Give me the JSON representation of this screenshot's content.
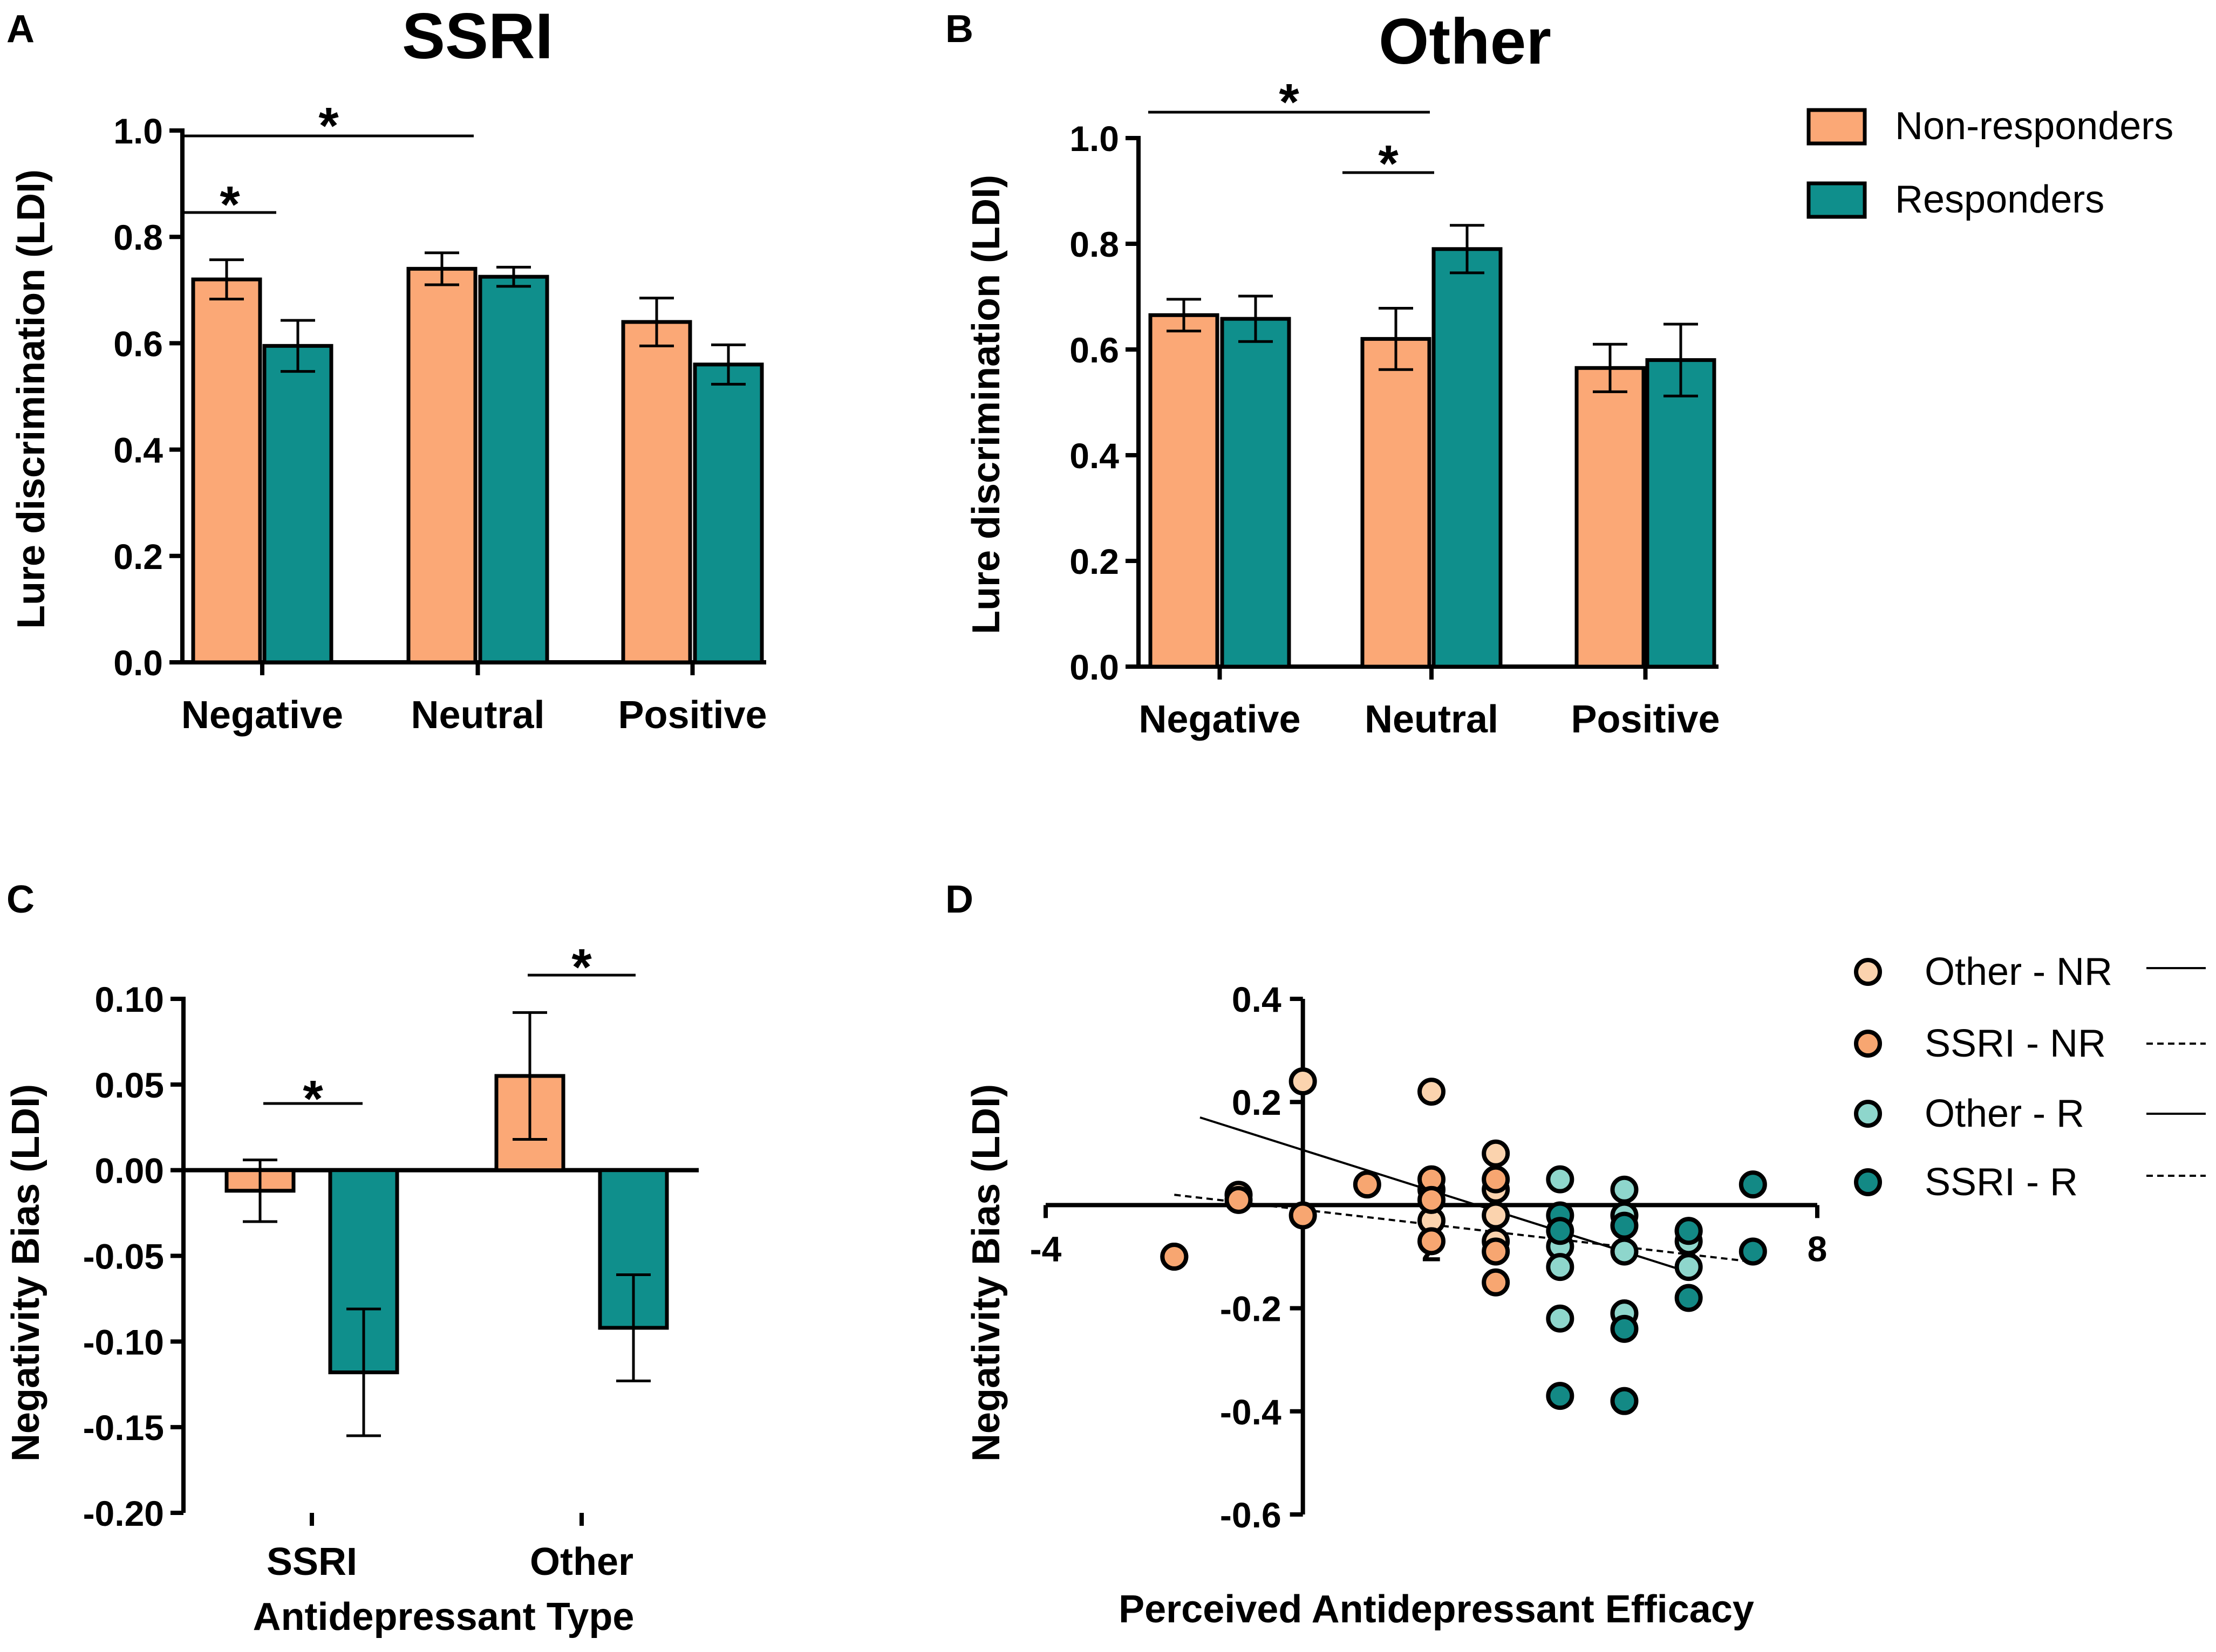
{
  "colors": {
    "non_responders": "#FBA876",
    "responders": "#0F8F8C",
    "other_nr": "#FBD3AE",
    "ssri_nr": "#F7A671",
    "other_r": "#8ED6CC",
    "ssri_r": "#138985"
  },
  "legend_top": {
    "non_responders": "Non-responders",
    "responders": "Responders"
  },
  "legend_d": {
    "other_nr": "Other - NR",
    "ssri_nr": "SSRI - NR",
    "other_r": "Other - R",
    "ssri_r": "SSRI - R"
  },
  "chart_data": [
    {
      "panel": "A",
      "type": "bar",
      "title": "SSRI",
      "ylabel": "Lure discrimination (LDI)",
      "xlabel": "",
      "ylim": [
        0,
        1.0
      ],
      "yticks": [
        "0.0",
        "0.2",
        "0.4",
        "0.6",
        "0.8",
        "1.0"
      ],
      "categories": [
        "Negative",
        "Neutral",
        "Positive"
      ],
      "series": [
        {
          "name": "Non-responders",
          "values": [
            0.72,
            0.74,
            0.64
          ],
          "errors": [
            0.037,
            0.03,
            0.045
          ]
        },
        {
          "name": "Responders",
          "values": [
            0.595,
            0.725,
            0.56
          ],
          "errors": [
            0.048,
            0.018,
            0.037
          ]
        }
      ],
      "significance": [
        {
          "label": "*",
          "from": "Negative Non-responders",
          "to": "Negative Responders"
        },
        {
          "label": "*",
          "from": "Negative",
          "to": "Neutral"
        }
      ]
    },
    {
      "panel": "B",
      "type": "bar",
      "title": "Other",
      "ylabel": "Lure discrimination (LDI)",
      "xlabel": "",
      "ylim": [
        0,
        1.0
      ],
      "yticks": [
        "0.0",
        "0.2",
        "0.4",
        "0.6",
        "0.8",
        "1.0"
      ],
      "categories": [
        "Negative",
        "Neutral",
        "Positive"
      ],
      "series": [
        {
          "name": "Non-responders",
          "values": [
            0.665,
            0.62,
            0.565
          ],
          "errors": [
            0.03,
            0.058,
            0.045
          ]
        },
        {
          "name": "Responders",
          "values": [
            0.658,
            0.79,
            0.58
          ],
          "errors": [
            0.043,
            0.045,
            0.068
          ]
        }
      ],
      "significance": [
        {
          "label": "*",
          "from": "Negative",
          "to": "Neutral"
        },
        {
          "label": "*",
          "from": "Neutral Non-responders",
          "to": "Neutral Responders"
        }
      ]
    },
    {
      "panel": "C",
      "type": "bar",
      "title": "",
      "ylabel": "Negativity Bias (LDI)",
      "xlabel": "Antidepressant Type",
      "ylim": [
        -0.2,
        0.1
      ],
      "yticks": [
        "0.10",
        "0.05",
        "0.00",
        "-0.05",
        "-0.10",
        "-0.15",
        "-0.20"
      ],
      "categories": [
        "SSRI",
        "Other"
      ],
      "series": [
        {
          "name": "Non-responders",
          "values": [
            -0.012,
            0.055
          ],
          "errors": [
            0.018,
            0.037
          ]
        },
        {
          "name": "Responders",
          "values": [
            -0.118,
            -0.092
          ],
          "errors": [
            0.037,
            0.031
          ]
        }
      ],
      "significance": [
        {
          "label": "*",
          "from": "SSRI Non-responders",
          "to": "SSRI Responders"
        },
        {
          "label": "*",
          "from": "Other Non-responders",
          "to": "Other Responders"
        }
      ]
    },
    {
      "panel": "D",
      "type": "scatter",
      "title": "",
      "ylabel": "Negativity Bias (LDI)",
      "xlabel": "Perceived Antidepressant Efficacy",
      "xlim": [
        -4,
        8
      ],
      "ylim": [
        -0.6,
        0.4
      ],
      "xticks": [
        "-4",
        "2",
        "8"
      ],
      "yticks": [
        "0.4",
        "0.2",
        "-0.2",
        "-0.4",
        "-0.6"
      ],
      "series": [
        {
          "name": "Other - NR",
          "color_key": "other_nr",
          "fit": "solid",
          "points": [
            [
              -2,
              -0.1
            ],
            [
              -1,
              0.02
            ],
            [
              0,
              0.24
            ],
            [
              2,
              0.22
            ],
            [
              2,
              0.03
            ],
            [
              2,
              -0.03
            ],
            [
              3,
              0.1
            ],
            [
              3,
              0.03
            ],
            [
              3,
              -0.02
            ],
            [
              3,
              -0.07
            ]
          ]
        },
        {
          "name": "SSRI - NR",
          "color_key": "ssri_nr",
          "fit": "dashed",
          "points": [
            [
              -2,
              -0.1
            ],
            [
              -1,
              0.01
            ],
            [
              0,
              -0.02
            ],
            [
              1,
              0.04
            ],
            [
              2,
              0.05
            ],
            [
              2,
              0.01
            ],
            [
              2,
              -0.07
            ],
            [
              3,
              0.05
            ],
            [
              3,
              -0.09
            ],
            [
              3,
              -0.15
            ]
          ]
        },
        {
          "name": "Other - R",
          "color_key": "other_r",
          "fit": "solid",
          "points": [
            [
              4,
              0.05
            ],
            [
              4,
              -0.08
            ],
            [
              4,
              -0.12
            ],
            [
              4,
              -0.22
            ],
            [
              5,
              0.03
            ],
            [
              5,
              -0.02
            ],
            [
              5,
              -0.09
            ],
            [
              5,
              -0.21
            ],
            [
              6,
              -0.05
            ],
            [
              6,
              -0.07
            ],
            [
              6,
              -0.12
            ]
          ]
        },
        {
          "name": "SSRI - R",
          "color_key": "ssri_r",
          "fit": "dashed",
          "points": [
            [
              4,
              -0.02
            ],
            [
              4,
              -0.05
            ],
            [
              4,
              -0.37
            ],
            [
              5,
              -0.04
            ],
            [
              5,
              -0.24
            ],
            [
              5,
              -0.38
            ],
            [
              6,
              -0.05
            ],
            [
              6,
              -0.18
            ],
            [
              7,
              0.04
            ],
            [
              7,
              -0.09
            ]
          ]
        }
      ],
      "fits": [
        {
          "style": "solid",
          "x": [
            -1.6,
            6
          ],
          "y": [
            0.17,
            -0.13
          ]
        },
        {
          "style": "dashed",
          "x": [
            -2,
            7
          ],
          "y": [
            0.02,
            -0.11
          ]
        }
      ]
    }
  ]
}
